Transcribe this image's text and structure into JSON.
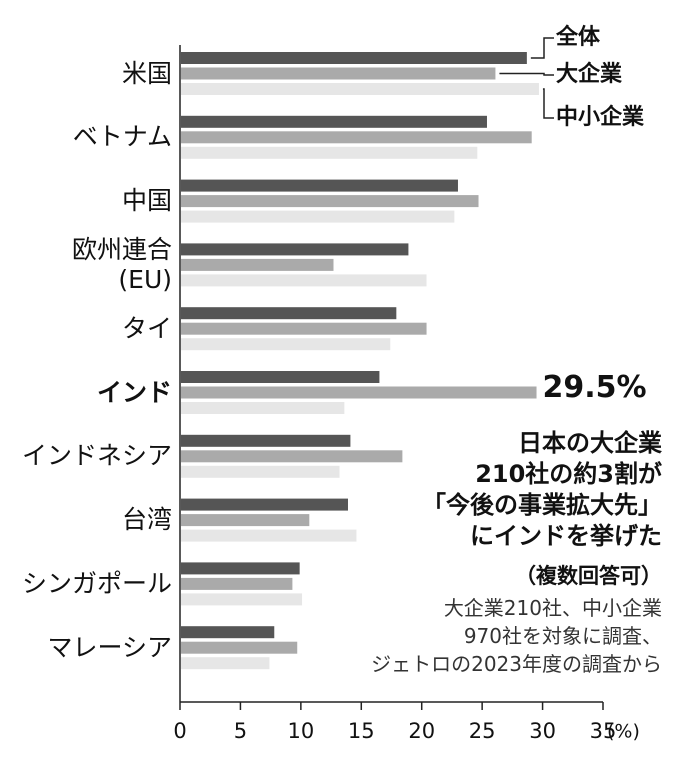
{
  "chart_data": {
    "type": "bar",
    "orientation": "horizontal",
    "categories": [
      "米国",
      "ベトナム",
      "中国",
      "欧州連合\n(EU)",
      "タイ",
      "インド",
      "インドネシア",
      "台湾",
      "シンガポール",
      "マレーシア"
    ],
    "series": [
      {
        "name": "全体",
        "color": "#555555",
        "values": [
          28.7,
          25.4,
          23.0,
          18.9,
          17.9,
          16.5,
          14.1,
          13.9,
          9.9,
          7.8
        ]
      },
      {
        "name": "大企業",
        "color": "#aaaaaa",
        "values": [
          26.1,
          29.1,
          24.7,
          12.7,
          20.4,
          29.5,
          18.4,
          10.7,
          9.3,
          9.7
        ],
        "value_labels": [
          null,
          null,
          null,
          null,
          null,
          "29.5%",
          null,
          null,
          null,
          null
        ]
      },
      {
        "name": "中小企業",
        "color": "#e6e6e6",
        "values": [
          29.7,
          24.6,
          22.7,
          20.4,
          17.4,
          13.6,
          13.2,
          14.6,
          10.1,
          7.4
        ]
      }
    ],
    "xlim": [
      0,
      35
    ],
    "xticks": [
      0,
      5,
      10,
      15,
      20,
      25,
      30,
      35
    ],
    "xlabel": "(%)",
    "annotations": [
      "日本の大企業\n210社の約3割が\n「今後の事業拡大先」\nにインドを挙げた",
      "（複数回答可）",
      "大企業210社、中小企業\n970社を対象に調査、\nジェトロの2023年度の調査から"
    ]
  }
}
